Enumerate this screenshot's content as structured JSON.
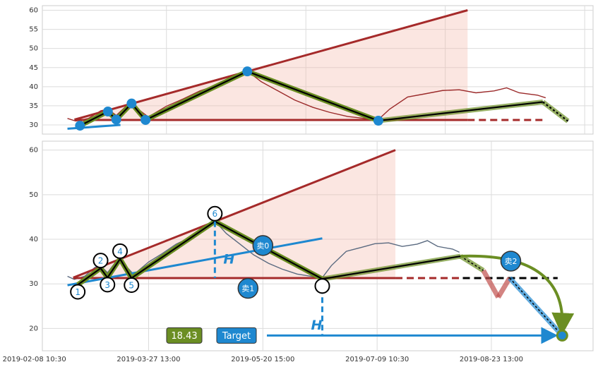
{
  "chart_data": [
    {
      "type": "line",
      "ylim": [
        27.6,
        61.2
      ],
      "yticks": [
        30,
        35,
        40,
        45,
        50,
        55,
        60
      ],
      "xlim": [
        11,
        406
      ],
      "grid": true,
      "xticks": [
        0,
        100,
        200,
        300,
        400
      ],
      "price": {
        "color": "#9b2a2a",
        "x": [
          29,
          35,
          44,
          53,
          58,
          64,
          72,
          78,
          87,
          100,
          112,
          124,
          137,
          149,
          158,
          168,
          180,
          192,
          205,
          217,
          230,
          242,
          252,
          260,
          273,
          285,
          298,
          310,
          322,
          335,
          344,
          353,
          366,
          372
        ],
        "values": [
          31.7,
          31.0,
          31.7,
          33.7,
          34.1,
          32.5,
          35.2,
          34.6,
          32.1,
          34.9,
          36.8,
          38.9,
          40.5,
          42.5,
          44.1,
          41.3,
          38.9,
          36.5,
          34.6,
          33.3,
          32.2,
          31.7,
          31.4,
          34.1,
          37.3,
          38.1,
          39.0,
          39.2,
          38.4,
          38.9,
          39.7,
          38.4,
          37.8,
          37.1
        ]
      },
      "zigzag": {
        "color": "#6b8e23",
        "x": [
          38,
          58,
          64,
          75,
          85,
          158,
          252
        ],
        "values": [
          29.8,
          33.5,
          31.4,
          35.6,
          31.3,
          44,
          31.1
        ]
      },
      "projection": {
        "x": [
          252,
          370,
          388
        ],
        "values": [
          31.1,
          36,
          31
        ]
      },
      "upper_line": {
        "color": "#a52a2a",
        "x": [
          34,
          316
        ],
        "values": [
          31.4,
          60
        ]
      },
      "neckline": {
        "color": "#a52a2a",
        "x": [
          34,
          316,
          370
        ],
        "values": [
          31.3,
          31.3,
          31.3
        ]
      },
      "blue_line": {
        "color": "#1e88d0",
        "x": [
          29,
          67
        ],
        "values": [
          29,
          30
        ]
      }
    },
    {
      "type": "line",
      "ylim": [
        15,
        62
      ],
      "yticks": [
        20,
        30,
        40,
        50,
        60
      ],
      "xlim": [
        7,
        489
      ],
      "grid": true,
      "xticks": [
        {
          "value": 0,
          "label": "2019-02-08 10:30"
        },
        {
          "value": 100,
          "label": "2019-03-27 13:00"
        },
        {
          "value": 200,
          "label": "2019-05-20 15:00"
        },
        {
          "value": 300,
          "label": "2019-07-09 10:30"
        },
        {
          "value": 400,
          "label": "2019-08-23 13:00"
        }
      ],
      "price": {
        "color": "#5a6a80",
        "x": [
          29,
          35,
          44,
          53,
          58,
          64,
          72,
          78,
          87,
          100,
          112,
          124,
          137,
          149,
          158,
          168,
          180,
          192,
          205,
          217,
          230,
          242,
          252,
          260,
          273,
          285,
          298,
          310,
          322,
          335,
          344,
          353,
          366,
          372
        ],
        "values": [
          31.7,
          31.0,
          31.7,
          33.7,
          34.1,
          32.5,
          35.2,
          34.6,
          32.1,
          34.9,
          36.8,
          38.9,
          40.5,
          42.5,
          44.1,
          41.3,
          38.9,
          36.5,
          34.6,
          33.3,
          32.2,
          31.7,
          31.4,
          34.1,
          37.3,
          38.1,
          39.0,
          39.2,
          38.4,
          38.9,
          39.7,
          38.4,
          37.8,
          37.1
        ]
      },
      "zigzag": {
        "color": "#6b8e23",
        "x": [
          38,
          58,
          64,
          75,
          85,
          158,
          252
        ],
        "values": [
          29.8,
          33.5,
          31.4,
          35.6,
          31.3,
          44,
          31.1
        ]
      },
      "point_labels": [
        "1",
        "2",
        "3",
        "4",
        "5",
        "6"
      ],
      "projection": {
        "x": [
          252,
          373
        ],
        "values": [
          31.1,
          36.2
        ]
      },
      "upper_line": {
        "color": "#a52a2a",
        "x": [
          34,
          316
        ],
        "values": [
          31.4,
          60
        ]
      },
      "neckline": {
        "color": "#a52a2a",
        "x": [
          34,
          316,
          372
        ],
        "values": [
          31.3,
          31.3,
          31.3
        ]
      },
      "support": {
        "color": "#000000",
        "x": [
          375,
          458
        ],
        "values": [
          31.3,
          31.3
        ]
      },
      "blue_line": {
        "color": "#1e88d0",
        "x": [
          29,
          252
        ],
        "values": [
          29.7,
          40.2
        ]
      },
      "signals": [
        {
          "label": "卖0",
          "x": 200,
          "y": 38.6
        },
        {
          "label": "卖1",
          "x": 187,
          "y": 29.0
        },
        {
          "label": "卖2",
          "x": 417,
          "y": 35.1
        }
      ],
      "h_label": "H",
      "forecast": {
        "x": [
          373,
          393,
          406,
          416,
          462
        ],
        "values": [
          36.2,
          33,
          27,
          31.3,
          18.43
        ]
      },
      "target_label": "Target",
      "target_price": 18.43
    }
  ]
}
